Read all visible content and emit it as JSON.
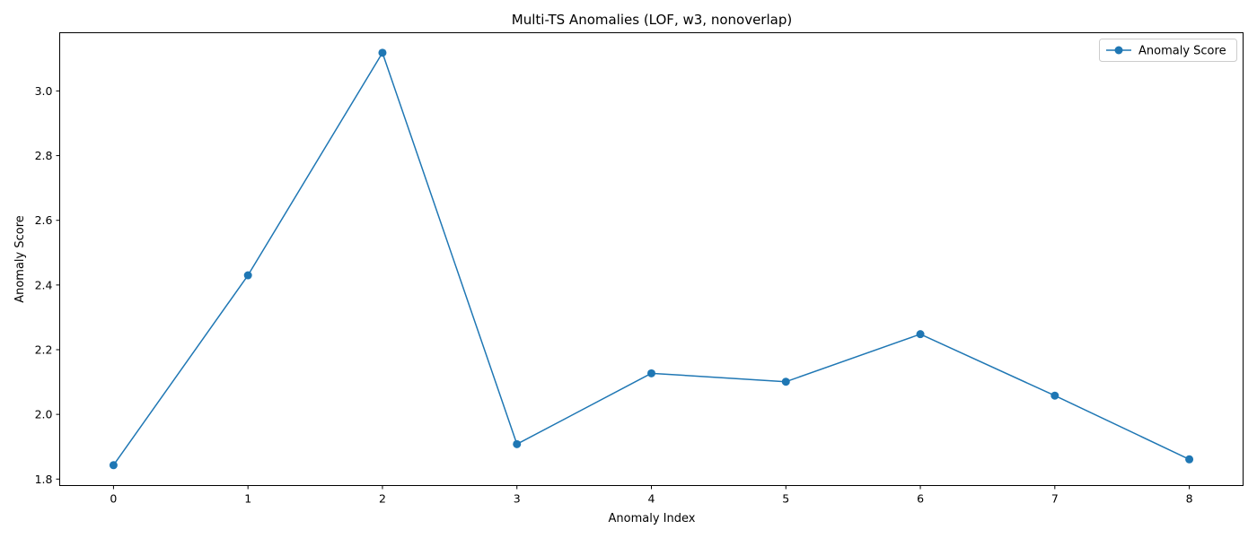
{
  "chart_data": {
    "type": "line",
    "title": "Multi-TS Anomalies (LOF, w3, nonoverlap)",
    "xlabel": "Anomaly Index",
    "ylabel": "Anomaly Score",
    "x": [
      0,
      1,
      2,
      3,
      4,
      5,
      6,
      7,
      8
    ],
    "series": [
      {
        "name": "Anomaly Score",
        "color": "#1f77b4",
        "marker": "circle",
        "values": [
          1.843,
          2.43,
          3.118,
          1.908,
          2.127,
          2.101,
          2.248,
          2.058,
          1.861
        ]
      }
    ],
    "xlim": [
      -0.4,
      8.4
    ],
    "ylim": [
      1.78,
      3.18
    ],
    "xticks": [
      0,
      1,
      2,
      3,
      4,
      5,
      6,
      7,
      8
    ],
    "yticks": [
      1.8,
      2.0,
      2.2,
      2.4,
      2.6,
      2.8,
      3.0
    ],
    "ytick_labels": [
      "1.8",
      "2.0",
      "2.2",
      "2.4",
      "2.6",
      "2.8",
      "3.0"
    ],
    "grid": false,
    "legend": "top-right"
  }
}
